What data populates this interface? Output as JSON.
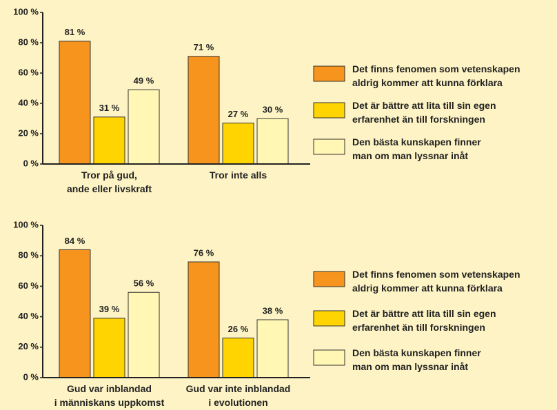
{
  "chart_data": [
    {
      "type": "bar",
      "categories": [
        "Tror på gud,\nande eller livskraft",
        "Tror inte alls"
      ],
      "series": [
        {
          "name": "Det finns fenomen som vetenskapen\naldrig kommer att kunna förklara",
          "color": "#f7941d",
          "values": [
            81,
            71
          ],
          "value_labels": [
            "81 %",
            "71 %"
          ]
        },
        {
          "name": "Det är bättre att lita till sin egen\nerfarenhet än till forskningen",
          "color": "#ffd400",
          "values": [
            31,
            27
          ],
          "value_labels": [
            "31 %",
            "27 %"
          ]
        },
        {
          "name": "Den bästa kunskapen finner\nman om man lyssnar inåt",
          "color": "#fff7b3",
          "values": [
            49,
            30
          ],
          "value_labels": [
            "49 %",
            "30 %"
          ]
        }
      ],
      "ylim": [
        0,
        100
      ],
      "yticks": [
        {
          "value": 0,
          "label": "0 %"
        },
        {
          "value": 20,
          "label": "20 %"
        },
        {
          "value": 40,
          "label": "40 %"
        },
        {
          "value": 60,
          "label": "60 %"
        },
        {
          "value": 80,
          "label": "80 %"
        },
        {
          "value": 100,
          "label": "100 %"
        }
      ]
    },
    {
      "type": "bar",
      "categories": [
        "Gud var inblandad\ni människans uppkomst",
        "Gud var inte inblandad\ni evolutionen"
      ],
      "series": [
        {
          "name": "Det finns fenomen som vetenskapen\naldrig kommer att kunna förklara",
          "color": "#f7941d",
          "values": [
            84,
            76
          ],
          "value_labels": [
            "84 %",
            "76 %"
          ]
        },
        {
          "name": "Det är bättre att lita till sin egen\nerfarenhet än till forskningen",
          "color": "#ffd400",
          "values": [
            39,
            26
          ],
          "value_labels": [
            "39 %",
            "26 %"
          ]
        },
        {
          "name": "Den bästa kunskapen finner\nman om man lyssnar inåt",
          "color": "#fff7b3",
          "values": [
            56,
            38
          ],
          "value_labels": [
            "56 %",
            "38 %"
          ]
        }
      ],
      "ylim": [
        0,
        100
      ],
      "yticks": [
        {
          "value": 0,
          "label": "0 %"
        },
        {
          "value": 20,
          "label": "20 %"
        },
        {
          "value": 40,
          "label": "40 %"
        },
        {
          "value": 60,
          "label": "60 %"
        },
        {
          "value": 80,
          "label": "80 %"
        },
        {
          "value": 100,
          "label": "100 %"
        }
      ]
    }
  ]
}
